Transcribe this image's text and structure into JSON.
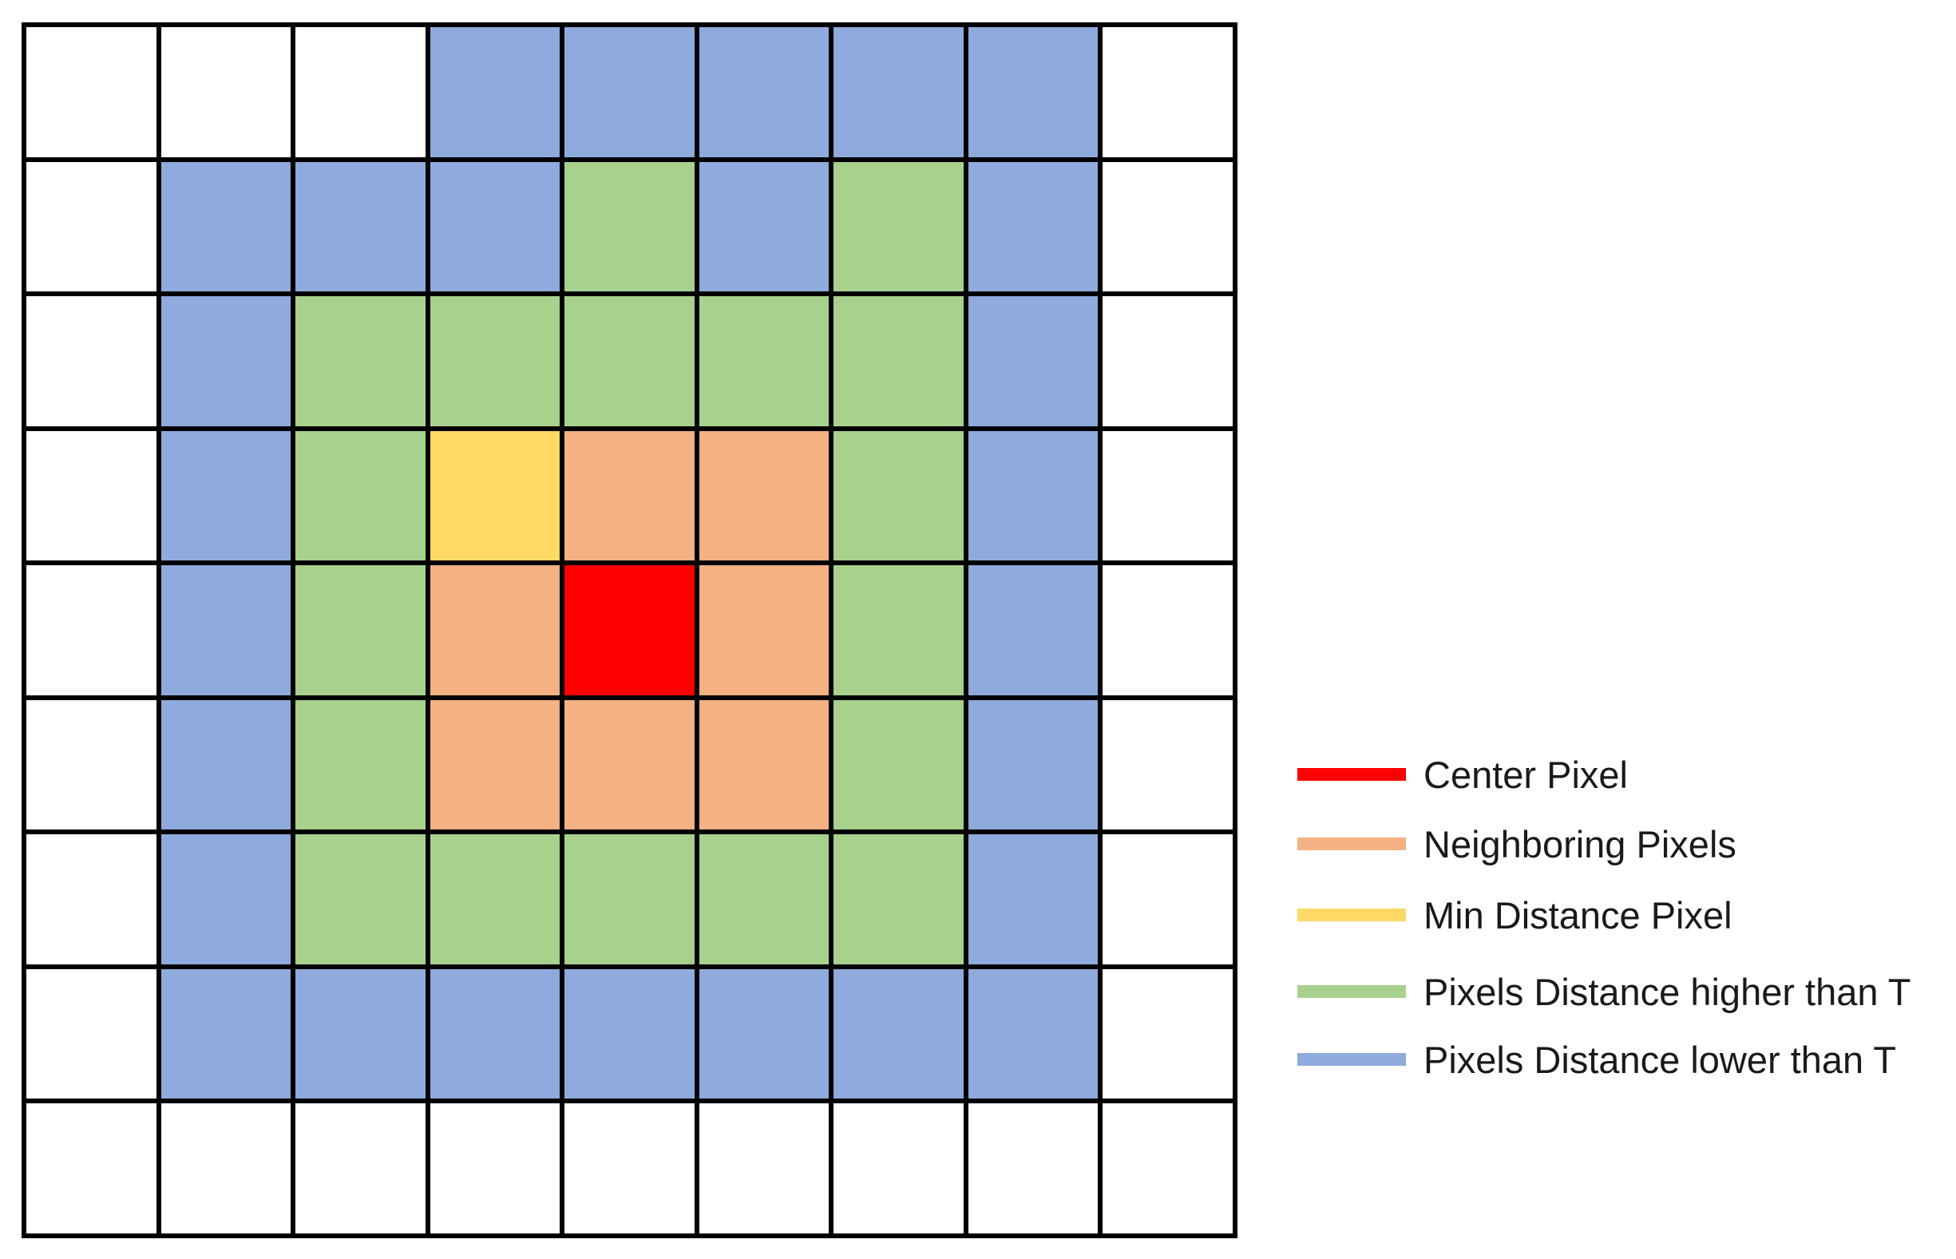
{
  "colors": {
    "white": "#ffffff",
    "blue": "#8faadc",
    "green": "#a9d18e",
    "orange": "#f4b183",
    "yellow": "#ffd966",
    "red": "#ff0000"
  },
  "grid": [
    [
      "white",
      "white",
      "white",
      "blue",
      "blue",
      "blue",
      "blue",
      "blue",
      "white"
    ],
    [
      "white",
      "blue",
      "blue",
      "blue",
      "green",
      "blue",
      "green",
      "blue",
      "white"
    ],
    [
      "white",
      "blue",
      "green",
      "green",
      "green",
      "green",
      "green",
      "blue",
      "white"
    ],
    [
      "white",
      "blue",
      "green",
      "yellow",
      "orange",
      "orange",
      "green",
      "blue",
      "white"
    ],
    [
      "white",
      "blue",
      "green",
      "orange",
      "red",
      "orange",
      "green",
      "blue",
      "white"
    ],
    [
      "white",
      "blue",
      "green",
      "orange",
      "orange",
      "orange",
      "green",
      "blue",
      "white"
    ],
    [
      "white",
      "blue",
      "green",
      "green",
      "green",
      "green",
      "green",
      "blue",
      "white"
    ],
    [
      "white",
      "blue",
      "blue",
      "blue",
      "blue",
      "blue",
      "blue",
      "blue",
      "white"
    ],
    [
      "white",
      "white",
      "white",
      "white",
      "white",
      "white",
      "white",
      "white",
      "white"
    ]
  ],
  "legend": [
    {
      "label": "Center Pixel",
      "color": "red"
    },
    {
      "label": "Neighboring Pixels",
      "color": "orange"
    },
    {
      "label": "Min Distance Pixel",
      "color": "yellow"
    },
    {
      "label": "Pixels Distance higher than T",
      "color": "green"
    },
    {
      "label": "Pixels Distance lower than T",
      "color": "blue"
    }
  ]
}
